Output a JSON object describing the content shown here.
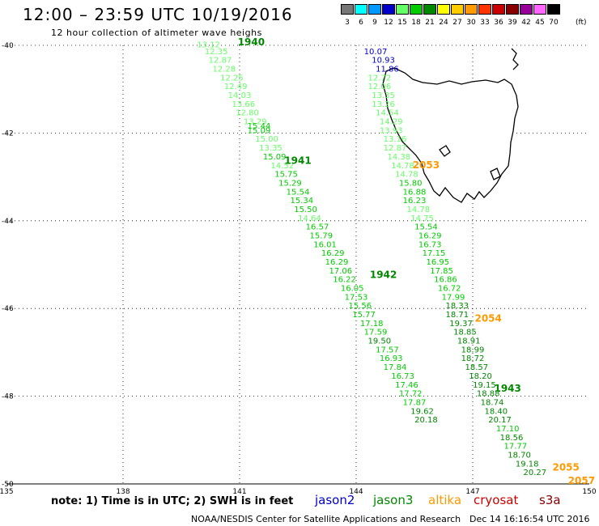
{
  "header": {
    "title": "12:00 – 23:59 UTC 10/19/2016",
    "subtitle": "12 hour collection of altimeter wave heighs"
  },
  "legend": {
    "unit": "(ft)",
    "bins": [
      {
        "label": "3",
        "color": "#777777"
      },
      {
        "label": "6",
        "color": "#00ffff"
      },
      {
        "label": "9",
        "color": "#0099ff"
      },
      {
        "label": "12",
        "color": "#0000cc"
      },
      {
        "label": "15",
        "color": "#66ff66"
      },
      {
        "label": "18",
        "color": "#00cc00"
      },
      {
        "label": "21",
        "color": "#008800"
      },
      {
        "label": "24",
        "color": "#ffff00"
      },
      {
        "label": "27",
        "color": "#ffcc00"
      },
      {
        "label": "30",
        "color": "#ff9900"
      },
      {
        "label": "33",
        "color": "#ff3300"
      },
      {
        "label": "36",
        "color": "#cc0000"
      },
      {
        "label": "39",
        "color": "#880000"
      },
      {
        "label": "42",
        "color": "#990099"
      },
      {
        "label": "45",
        "color": "#ff66ff"
      },
      {
        "label": "70",
        "color": "#000000"
      }
    ]
  },
  "footer": {
    "note": "note:  1) Time is in UTC;  2) SWH is in feet",
    "satellites": [
      {
        "name": "jason2",
        "color": "#0000cc"
      },
      {
        "name": "jason3",
        "color": "#008800"
      },
      {
        "name": "altika",
        "color": "#ff9900"
      },
      {
        "name": "cryosat",
        "color": "#cc0000"
      },
      {
        "name": "s3a",
        "color": "#880000"
      }
    ],
    "credit": "NOAA/NESDIS Center for Satellite Applications and Research",
    "stamp": "Dec 14 16:16:54 UTC 2016"
  },
  "chart_data": {
    "type": "scatter",
    "title": "12:00 – 23:59 UTC 10/19/2016",
    "subtitle": "12 hour collection of altimeter wave heighs",
    "xlabel": "",
    "ylabel": "",
    "xlim": [
      135,
      150
    ],
    "ylim": [
      -50,
      -40
    ],
    "x_ticks": [
      135,
      138,
      141,
      144,
      147,
      150
    ],
    "y_ticks": [
      -40,
      -42,
      -44,
      -46,
      -48,
      -50
    ],
    "grid": true,
    "unit": "ft",
    "tracks": [
      {
        "hour": "1940",
        "lon": 141.3,
        "lat": -40.0
      },
      {
        "hour": "1941",
        "lon": 142.5,
        "lat": -42.7
      },
      {
        "hour": "1942",
        "lon": 144.7,
        "lat": -45.3
      },
      {
        "hour": "1943",
        "lon": 147.9,
        "lat": -47.9
      },
      {
        "hour": "2053",
        "lon": 145.8,
        "lat": -42.8
      },
      {
        "hour": "2054",
        "lon": 147.4,
        "lat": -46.3
      },
      {
        "hour": "2055",
        "lon": 149.4,
        "lat": -49.7
      },
      {
        "hour": "2057",
        "lon": 149.8,
        "lat": -50.0
      }
    ],
    "series": [
      {
        "name": "jason2",
        "points": [
          {
            "lon": 144.5,
            "lat": -40.2,
            "swh": 10.07
          },
          {
            "lon": 144.7,
            "lat": -40.4,
            "swh": 10.93
          },
          {
            "lon": 144.8,
            "lat": -40.6,
            "swh": 11.86
          }
        ]
      },
      {
        "name": "jason3",
        "points": [
          {
            "lon": 140.2,
            "lat": -40.05,
            "swh": 13.12
          },
          {
            "lon": 140.4,
            "lat": -40.2,
            "swh": 12.35
          },
          {
            "lon": 140.5,
            "lat": -40.4,
            "swh": 12.87
          },
          {
            "lon": 140.6,
            "lat": -40.6,
            "swh": 12.28
          },
          {
            "lon": 140.8,
            "lat": -40.8,
            "swh": 12.25
          },
          {
            "lon": 140.9,
            "lat": -41.0,
            "swh": 12.49
          },
          {
            "lon": 141.0,
            "lat": -41.2,
            "swh": 14.03
          },
          {
            "lon": 141.1,
            "lat": -41.4,
            "swh": 13.66
          },
          {
            "lon": 141.2,
            "lat": -41.6,
            "swh": 12.8
          },
          {
            "lon": 141.4,
            "lat": -41.8,
            "swh": 13.29
          },
          {
            "lon": 141.5,
            "lat": -41.9,
            "swh": 15.44
          },
          {
            "lon": 141.5,
            "lat": -42.0,
            "swh": 15.09
          },
          {
            "lon": 141.7,
            "lat": -42.2,
            "swh": 15.0
          },
          {
            "lon": 141.8,
            "lat": -42.4,
            "swh": 13.35
          },
          {
            "lon": 141.9,
            "lat": -42.6,
            "swh": 15.09
          },
          {
            "lon": 142.1,
            "lat": -42.8,
            "swh": 14.52
          },
          {
            "lon": 142.2,
            "lat": -43.0,
            "swh": 15.75
          },
          {
            "lon": 142.3,
            "lat": -43.2,
            "swh": 15.29
          },
          {
            "lon": 142.5,
            "lat": -43.4,
            "swh": 15.54
          },
          {
            "lon": 142.6,
            "lat": -43.6,
            "swh": 15.34
          },
          {
            "lon": 142.7,
            "lat": -43.8,
            "swh": 15.5
          },
          {
            "lon": 142.8,
            "lat": -44.0,
            "swh": 14.64
          },
          {
            "lon": 143.0,
            "lat": -44.2,
            "swh": 16.57
          },
          {
            "lon": 143.1,
            "lat": -44.4,
            "swh": 15.79
          },
          {
            "lon": 143.2,
            "lat": -44.6,
            "swh": 16.01
          },
          {
            "lon": 143.4,
            "lat": -44.8,
            "swh": 16.29
          },
          {
            "lon": 143.5,
            "lat": -45.0,
            "swh": 16.29
          },
          {
            "lon": 143.6,
            "lat": -45.2,
            "swh": 17.06
          },
          {
            "lon": 143.7,
            "lat": -45.4,
            "swh": 16.22
          },
          {
            "lon": 143.9,
            "lat": -45.6,
            "swh": 16.05
          },
          {
            "lon": 144.0,
            "lat": -45.8,
            "swh": 17.53
          },
          {
            "lon": 144.1,
            "lat": -46.0,
            "swh": 15.56
          },
          {
            "lon": 144.2,
            "lat": -46.2,
            "swh": 15.77
          },
          {
            "lon": 144.4,
            "lat": -46.4,
            "swh": 17.18
          },
          {
            "lon": 144.5,
            "lat": -46.6,
            "swh": 17.59
          },
          {
            "lon": 144.6,
            "lat": -46.8,
            "swh": 19.5
          },
          {
            "lon": 144.8,
            "lat": -47.0,
            "swh": 17.57
          },
          {
            "lon": 144.9,
            "lat": -47.2,
            "swh": 16.93
          },
          {
            "lon": 145.0,
            "lat": -47.4,
            "swh": 17.84
          },
          {
            "lon": 145.2,
            "lat": -47.6,
            "swh": 16.73
          },
          {
            "lon": 145.3,
            "lat": -47.8,
            "swh": 17.46
          },
          {
            "lon": 145.4,
            "lat": -48.0,
            "swh": 17.72
          },
          {
            "lon": 145.5,
            "lat": -48.2,
            "swh": 17.87
          },
          {
            "lon": 145.7,
            "lat": -48.4,
            "swh": 19.62
          },
          {
            "lon": 145.8,
            "lat": -48.6,
            "swh": 20.18
          },
          {
            "lon": 144.6,
            "lat": -40.8,
            "swh": 12.72
          },
          {
            "lon": 144.6,
            "lat": -41.0,
            "swh": 12.06
          },
          {
            "lon": 144.7,
            "lat": -41.2,
            "swh": 13.35
          },
          {
            "lon": 144.7,
            "lat": -41.4,
            "swh": 13.26
          },
          {
            "lon": 144.8,
            "lat": -41.6,
            "swh": 14.54
          },
          {
            "lon": 144.9,
            "lat": -41.8,
            "swh": 14.29
          },
          {
            "lon": 144.9,
            "lat": -42.0,
            "swh": 13.93
          },
          {
            "lon": 145.0,
            "lat": -42.2,
            "swh": 13.16
          },
          {
            "lon": 145.0,
            "lat": -42.4,
            "swh": 12.87
          },
          {
            "lon": 145.1,
            "lat": -42.6,
            "swh": 14.38
          },
          {
            "lon": 145.2,
            "lat": -42.8,
            "swh": 14.78
          },
          {
            "lon": 145.3,
            "lat": -43.0,
            "swh": 14.78
          },
          {
            "lon": 145.4,
            "lat": -43.2,
            "swh": 15.8
          },
          {
            "lon": 145.5,
            "lat": -43.4,
            "swh": 16.88
          },
          {
            "lon": 145.5,
            "lat": -43.6,
            "swh": 16.23
          },
          {
            "lon": 145.6,
            "lat": -43.8,
            "swh": 14.78
          },
          {
            "lon": 145.7,
            "lat": -44.0,
            "swh": 14.75
          },
          {
            "lon": 145.8,
            "lat": -44.2,
            "swh": 15.54
          },
          {
            "lon": 145.9,
            "lat": -44.4,
            "swh": 16.29
          },
          {
            "lon": 145.9,
            "lat": -44.6,
            "swh": 16.73
          },
          {
            "lon": 146.0,
            "lat": -44.8,
            "swh": 17.15
          },
          {
            "lon": 146.1,
            "lat": -45.0,
            "swh": 16.95
          },
          {
            "lon": 146.2,
            "lat": -45.2,
            "swh": 17.85
          },
          {
            "lon": 146.3,
            "lat": -45.4,
            "swh": 16.86
          },
          {
            "lon": 146.4,
            "lat": -45.6,
            "swh": 16.72
          },
          {
            "lon": 146.5,
            "lat": -45.8,
            "swh": 17.99
          },
          {
            "lon": 146.6,
            "lat": -46.0,
            "swh": 18.33
          },
          {
            "lon": 146.6,
            "lat": -46.2,
            "swh": 18.71
          },
          {
            "lon": 146.7,
            "lat": -46.4,
            "swh": 19.37
          },
          {
            "lon": 146.8,
            "lat": -46.6,
            "swh": 18.85
          },
          {
            "lon": 146.9,
            "lat": -46.8,
            "swh": 18.91
          },
          {
            "lon": 147.0,
            "lat": -47.0,
            "swh": 18.99
          },
          {
            "lon": 147.0,
            "lat": -47.2,
            "swh": 18.72
          },
          {
            "lon": 147.1,
            "lat": -47.4,
            "swh": 18.57
          },
          {
            "lon": 147.2,
            "lat": -47.6,
            "swh": 18.2
          },
          {
            "lon": 147.3,
            "lat": -47.8,
            "swh": 19.15
          },
          {
            "lon": 147.4,
            "lat": -48.0,
            "swh": 18.88
          },
          {
            "lon": 147.5,
            "lat": -48.2,
            "swh": 18.74
          },
          {
            "lon": 147.6,
            "lat": -48.4,
            "swh": 18.4
          },
          {
            "lon": 147.7,
            "lat": -48.6,
            "swh": 20.17
          },
          {
            "lon": 147.9,
            "lat": -48.8,
            "swh": 17.1
          },
          {
            "lon": 148.0,
            "lat": -49.0,
            "swh": 18.56
          },
          {
            "lon": 148.1,
            "lat": -49.2,
            "swh": 17.77
          },
          {
            "lon": 148.2,
            "lat": -49.4,
            "swh": 18.7
          },
          {
            "lon": 148.4,
            "lat": -49.6,
            "swh": 19.18
          },
          {
            "lon": 148.6,
            "lat": -49.8,
            "swh": 20.27
          }
        ]
      }
    ]
  }
}
